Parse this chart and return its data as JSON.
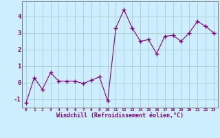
{
  "x": [
    0,
    1,
    2,
    3,
    4,
    5,
    6,
    7,
    8,
    9,
    10,
    11,
    12,
    13,
    14,
    15,
    16,
    17,
    18,
    19,
    20,
    21,
    22,
    23
  ],
  "y": [
    -1.2,
    0.3,
    -0.4,
    0.6,
    0.1,
    0.1,
    0.1,
    -0.05,
    0.15,
    0.35,
    -1.1,
    3.3,
    4.4,
    3.3,
    2.5,
    2.6,
    1.75,
    2.8,
    2.85,
    2.5,
    3.0,
    3.7,
    3.4,
    3.0
  ],
  "line_color": "#800080",
  "marker": "+",
  "marker_size": 4,
  "marker_lw": 1.0,
  "bg_color": "#cceeff",
  "grid_color": "#aacccc",
  "xlabel": "Windchill (Refroidissement éolien,°C)",
  "xlabel_color": "#800080",
  "tick_color": "#800080",
  "ylim": [
    -1.5,
    4.9
  ],
  "xlim": [
    -0.5,
    23.5
  ],
  "yticks": [
    -1,
    0,
    1,
    2,
    3,
    4
  ],
  "xticks": [
    0,
    1,
    2,
    3,
    4,
    5,
    6,
    7,
    8,
    9,
    10,
    11,
    12,
    13,
    14,
    15,
    16,
    17,
    18,
    19,
    20,
    21,
    22,
    23
  ],
  "xtick_labels": [
    "0",
    "1",
    "2",
    "3",
    "4",
    "5",
    "6",
    "7",
    "8",
    "9",
    "10",
    "11",
    "12",
    "13",
    "14",
    "15",
    "16",
    "17",
    "18",
    "19",
    "20",
    "21",
    "22",
    "23"
  ]
}
